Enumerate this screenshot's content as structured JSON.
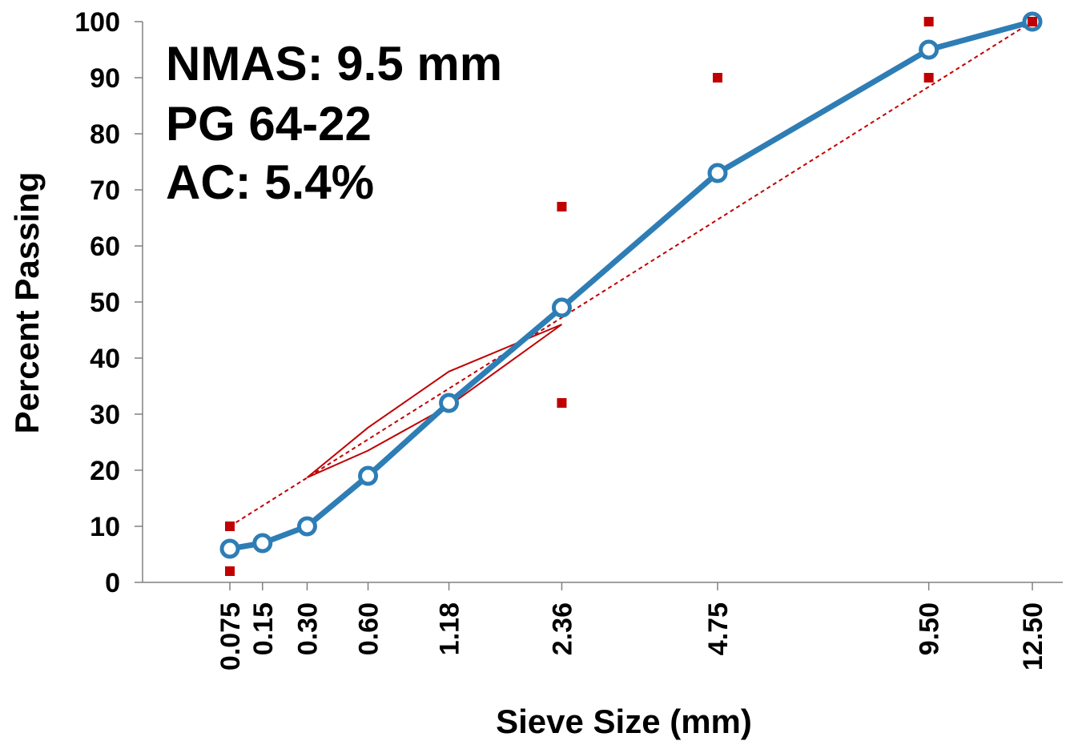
{
  "chart_data": {
    "type": "line",
    "xlabel": "Sieve Size (mm)",
    "ylabel": "Percent Passing",
    "x_scale": "power-0.45",
    "ylim": [
      0,
      100
    ],
    "y_ticks": [
      0,
      10,
      20,
      30,
      40,
      50,
      60,
      70,
      80,
      90,
      100
    ],
    "x_ticks": [
      {
        "value": 0.075,
        "label": "0.075"
      },
      {
        "value": 0.15,
        "label": "0.15"
      },
      {
        "value": 0.3,
        "label": "0.30"
      },
      {
        "value": 0.6,
        "label": "0.60"
      },
      {
        "value": 1.18,
        "label": "1.18"
      },
      {
        "value": 2.36,
        "label": "2.36"
      },
      {
        "value": 4.75,
        "label": "4.75"
      },
      {
        "value": 9.5,
        "label": "9.50"
      },
      {
        "value": 12.5,
        "label": "12.50"
      }
    ],
    "annotations": [
      "NMAS: 9.5 mm",
      "PG 64-22",
      "AC: 5.4%"
    ],
    "series": [
      {
        "role": "gradation",
        "style": "line-with-circle-markers",
        "color": "#2e7db5",
        "x": [
          0.075,
          0.15,
          0.3,
          0.6,
          1.18,
          2.36,
          4.75,
          9.5,
          12.5
        ],
        "y": [
          6,
          7,
          10,
          19,
          32,
          49,
          73,
          95,
          100
        ]
      },
      {
        "role": "maximum-density-line",
        "style": "dashed",
        "color": "#c00000",
        "x": [
          0.075,
          12.5
        ],
        "y": [
          10,
          100
        ]
      },
      {
        "role": "restricted-zone",
        "style": "thin-outline",
        "color": "#c00000",
        "x": [
          0.3,
          0.6,
          1.18,
          2.36,
          1.18,
          0.6,
          0.3
        ],
        "y": [
          18.7,
          27.6,
          37.6,
          46.0,
          31.5,
          23.5,
          18.7
        ]
      },
      {
        "role": "control-points",
        "style": "square-markers",
        "color": "#c00000",
        "x": [
          0.075,
          0.075,
          2.36,
          2.36,
          4.75,
          9.5,
          9.5,
          12.5
        ],
        "y": [
          2,
          10,
          32,
          67,
          90,
          90,
          100,
          100
        ]
      }
    ]
  }
}
